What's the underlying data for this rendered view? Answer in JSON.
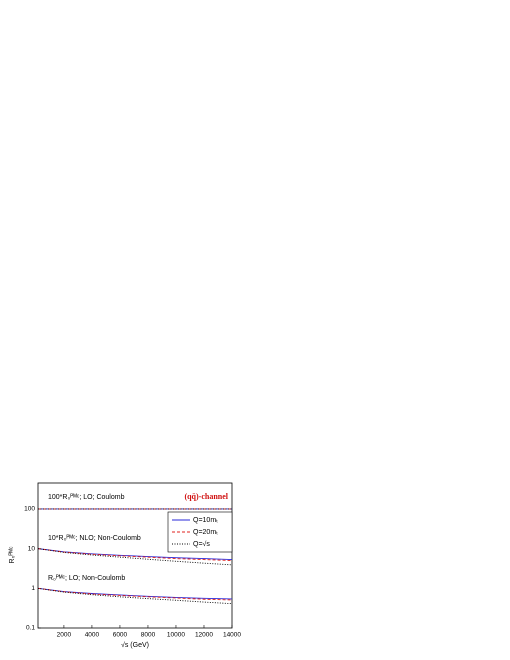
{
  "chart_data": {
    "type": "line",
    "x": [
      150,
      2000,
      4000,
      6000,
      8000,
      10000,
      12000,
      14000
    ],
    "xlim": [
      150,
      14000
    ],
    "xticks": [
      2000,
      4000,
      6000,
      8000,
      10000,
      12000,
      14000
    ],
    "ylim": [
      0.1,
      450
    ],
    "yticks": [
      0.1,
      1,
      10,
      100
    ],
    "log_y": true,
    "xlabel": "√s (GeV)",
    "ylabel": "R₀ᴾᴹᶜ",
    "annotations": [
      "100*R₀ᴾᴹᶜ; LO; Coulomb",
      "10*R₀ᴾᴹᶜ; NLO; Non-Coulomb",
      "R₀ᴾᴹᶜ; LO; Non-Coulomb",
      "(qq̄)-channel"
    ],
    "series": [
      {
        "name": "Q=10mₜ",
        "color": "#2a2ad8",
        "style": "solid",
        "curves": [
          [
            100,
            100,
            100,
            100,
            100,
            100,
            100,
            100
          ],
          [
            10,
            8.3,
            7.4,
            6.8,
            6.3,
            5.9,
            5.6,
            5.3
          ],
          [
            1,
            0.83,
            0.74,
            0.68,
            0.63,
            0.59,
            0.56,
            0.54
          ]
        ]
      },
      {
        "name": "Q=20mₜ",
        "color": "#e0201c",
        "style": "dashed",
        "curves": [
          [
            100,
            100,
            100,
            100,
            100,
            100,
            100,
            100
          ],
          [
            10,
            8.2,
            7.2,
            6.6,
            6.1,
            5.6,
            5.3,
            5.0
          ],
          [
            1,
            0.82,
            0.72,
            0.66,
            0.61,
            0.57,
            0.53,
            0.51
          ]
        ]
      },
      {
        "name": "Q=√s",
        "color": "#000000",
        "style": "dotted",
        "curves": [
          [
            100,
            100,
            100,
            100,
            100,
            100,
            100,
            100
          ],
          [
            10,
            8.0,
            6.9,
            6.1,
            5.4,
            4.8,
            4.3,
            3.9
          ],
          [
            1,
            0.8,
            0.69,
            0.61,
            0.55,
            0.5,
            0.45,
            0.41
          ]
        ]
      }
    ]
  }
}
